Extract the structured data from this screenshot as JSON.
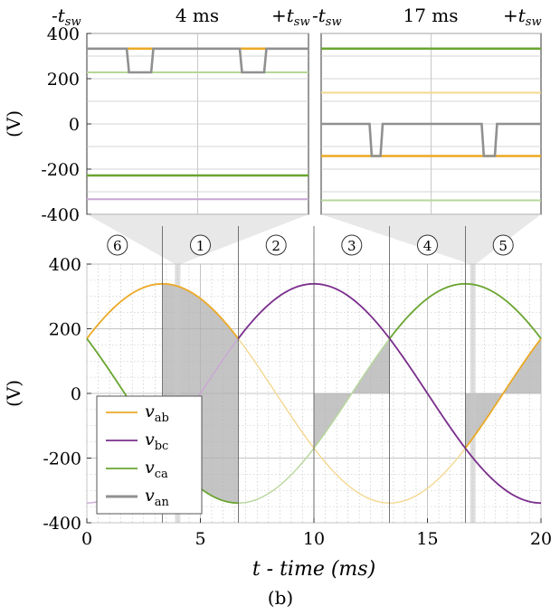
{
  "colors": {
    "v_ab": "#eba925",
    "v_bc": "#7a2e8c",
    "v_ca": "#6aa531",
    "v_an": "#909090",
    "v_ab_light": "#f4d890",
    "v_bc_light": "#c9a6d4",
    "v_ca_light": "#b6d79a",
    "shade": "#b0b0b0"
  },
  "caption": "(b)",
  "chart_data": [
    {
      "id": "inset-left",
      "type": "line",
      "center_time_label": "4 ms",
      "left_label": "-t",
      "left_label_sub": "sw",
      "right_label": "+t",
      "right_label_sub": "sw",
      "ylabel": "(V)",
      "ylim": [
        -400,
        400
      ],
      "yticks": [
        "400",
        "200",
        "0",
        "-200",
        "-400"
      ],
      "x": [
        0,
        1
      ],
      "series": [
        {
          "name": "v_ab",
          "style": "solid",
          "values": [
            333,
            333
          ]
        },
        {
          "name": "v_bc",
          "style": "light",
          "values": [
            -333,
            -333
          ]
        },
        {
          "name": "v_ca",
          "style": "solid",
          "values": [
            -228,
            -228
          ]
        },
        {
          "name": "v_ca",
          "style": "light",
          "values": [
            228,
            228
          ]
        },
        {
          "name": "v_an",
          "style": "switching",
          "high": 333,
          "low": 228,
          "low_intervals": [
            [
              0.18,
              0.3
            ],
            [
              0.69,
              0.81
            ]
          ]
        }
      ]
    },
    {
      "id": "inset-right",
      "type": "line",
      "center_time_label": "17 ms",
      "left_label": "-t",
      "left_label_sub": "sw",
      "right_label": "+t",
      "right_label_sub": "sw",
      "ylim": [
        -400,
        400
      ],
      "x": [
        0,
        1
      ],
      "series": [
        {
          "name": "v_ca",
          "style": "solid",
          "values": [
            333,
            333
          ]
        },
        {
          "name": "v_ab",
          "style": "light",
          "values": [
            138,
            138
          ]
        },
        {
          "name": "v_ab",
          "style": "solid",
          "values": [
            -142,
            -142
          ]
        },
        {
          "name": "v_ca",
          "style": "light",
          "values": [
            -338,
            -338
          ]
        },
        {
          "name": "v_an",
          "style": "switching",
          "high": 0,
          "low": -142,
          "low_intervals": [
            [
              0.22,
              0.28
            ],
            [
              0.73,
              0.8
            ]
          ]
        }
      ]
    },
    {
      "id": "main",
      "type": "line",
      "xlabel": "t - time (ms)",
      "ylabel": "(V)",
      "xlim": [
        0,
        20
      ],
      "ylim": [
        -400,
        400
      ],
      "xticks": [
        "0",
        "5",
        "10",
        "15",
        "20"
      ],
      "yticks": [
        "400",
        "200",
        "0",
        "-200",
        "-400"
      ],
      "amplitude": 339,
      "period_ms": 20,
      "series": [
        {
          "name": "v_ab",
          "phase_deg": 30
        },
        {
          "name": "v_bc",
          "phase_deg": -90
        },
        {
          "name": "v_ca",
          "phase_deg": 150
        }
      ],
      "sectors": [
        {
          "label": "6",
          "from": 0,
          "to": 3.33
        },
        {
          "label": "1",
          "from": 3.33,
          "to": 6.67
        },
        {
          "label": "2",
          "from": 6.67,
          "to": 10
        },
        {
          "label": "3",
          "from": 10,
          "to": 13.33
        },
        {
          "label": "4",
          "from": 13.33,
          "to": 16.67
        },
        {
          "label": "5",
          "from": 16.67,
          "to": 20
        }
      ],
      "zoom_windows_ms": [
        4,
        17
      ],
      "legend": {
        "position": "bottom-left",
        "entries": [
          {
            "label": "v",
            "sub": "ab",
            "key": "v_ab"
          },
          {
            "label": "v",
            "sub": "bc",
            "key": "v_bc"
          },
          {
            "label": "v",
            "sub": "ca",
            "key": "v_ca"
          },
          {
            "label": "v",
            "sub": "an",
            "key": "v_an"
          }
        ]
      }
    }
  ]
}
